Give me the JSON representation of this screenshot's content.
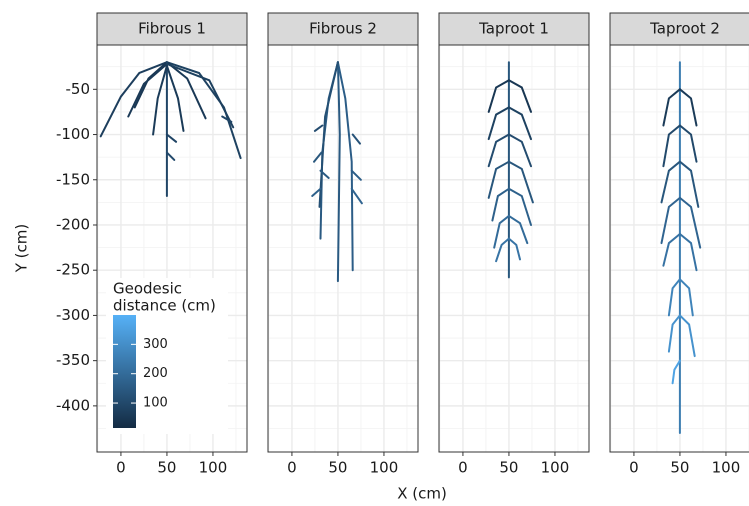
{
  "chart_data": {
    "type": "line",
    "xlabel": "X (cm)",
    "ylabel": "Y (cm)",
    "xlim": [
      -26,
      137
    ],
    "ylim": [
      -451,
      -1
    ],
    "xticks": [
      0,
      50,
      100
    ],
    "yticks": [
      -50,
      -100,
      -150,
      -200,
      -250,
      -300,
      -350,
      -400
    ],
    "xminor": [
      -25,
      25,
      75,
      125
    ],
    "yminor": [
      -25,
      -75,
      -125,
      -175,
      -225,
      -275,
      -325,
      -375,
      -425
    ],
    "grid": true,
    "colorbar": {
      "title_lines": [
        "Geodesic",
        "distance (cm)"
      ],
      "limits": [
        15,
        400
      ],
      "ticks": [
        100,
        200,
        300
      ],
      "colors": [
        "#132B43",
        "#56B1F7"
      ]
    },
    "facets": [
      {
        "title": "Fibrous 1",
        "roots": [
          {
            "x": [
              50,
              20,
              0,
              -22
            ],
            "y": [
              -20,
              -32,
              -58,
              -102
            ],
            "distance": 70
          },
          {
            "x": [
              50,
              85,
              112,
              130
            ],
            "y": [
              -20,
              -32,
              -70,
              -126
            ],
            "distance": 80
          },
          {
            "x": [
              50,
              30,
              15
            ],
            "y": [
              -20,
              -38,
              -70
            ],
            "distance": 50
          },
          {
            "x": [
              50,
              72,
              92
            ],
            "y": [
              -20,
              -38,
              -82
            ],
            "distance": 55
          },
          {
            "x": [
              50,
              50,
              50
            ],
            "y": [
              -20,
              -100,
              -168
            ],
            "distance": 90
          },
          {
            "x": [
              50,
              40,
              35
            ],
            "y": [
              -24,
              -60,
              -100
            ],
            "distance": 60
          },
          {
            "x": [
              50,
              62,
              68
            ],
            "y": [
              -24,
              -60,
              -96
            ],
            "distance": 60
          },
          {
            "x": [
              50,
              25,
              8
            ],
            "y": [
              -22,
              -44,
              -80
            ],
            "distance": 55
          },
          {
            "x": [
              50,
              96,
              122
            ],
            "y": [
              -22,
              -40,
              -92
            ],
            "distance": 75
          },
          {
            "x": [
              50,
              60
            ],
            "y": [
              -100,
              -108
            ],
            "distance": 85
          },
          {
            "x": [
              50,
              58
            ],
            "y": [
              -120,
              -128
            ],
            "distance": 100
          },
          {
            "x": [
              110,
              120
            ],
            "y": [
              -80,
              -86
            ],
            "distance": 90
          }
        ]
      },
      {
        "title": "Fibrous 2",
        "roots": [
          {
            "x": [
              50,
              40,
              33,
              31
            ],
            "y": [
              -20,
              -60,
              -120,
              -215
            ],
            "distance": 150
          },
          {
            "x": [
              50,
              58,
              65,
              66
            ],
            "y": [
              -20,
              -60,
              -130,
              -250
            ],
            "distance": 160
          },
          {
            "x": [
              50,
              52,
              50
            ],
            "y": [
              -20,
              -100,
              -262
            ],
            "distance": 150
          },
          {
            "x": [
              50,
              36,
              30
            ],
            "y": [
              -20,
              -80,
              -180
            ],
            "distance": 120
          },
          {
            "x": [
              33,
              25
            ],
            "y": [
              -90,
              -96
            ],
            "distance": 110
          },
          {
            "x": [
              32,
              24
            ],
            "y": [
              -120,
              -130
            ],
            "distance": 140
          },
          {
            "x": [
              31,
              22
            ],
            "y": [
              -160,
              -168
            ],
            "distance": 170
          },
          {
            "x": [
              65,
              75
            ],
            "y": [
              -140,
              -150
            ],
            "distance": 160
          },
          {
            "x": [
              65,
              76
            ],
            "y": [
              -160,
              -176
            ],
            "distance": 180
          },
          {
            "x": [
              66,
              74
            ],
            "y": [
              -100,
              -110
            ],
            "distance": 130
          },
          {
            "x": [
              31,
              40
            ],
            "y": [
              -140,
              -148
            ],
            "distance": 150
          }
        ]
      },
      {
        "title": "Taproot 1",
        "roots": [
          {
            "x": [
              50,
              50,
              50
            ],
            "y": [
              -20,
              -140,
              -258
            ],
            "distance": 140
          },
          {
            "x": [
              50,
              36,
              28
            ],
            "y": [
              -40,
              -48,
              -75
            ],
            "distance": 50
          },
          {
            "x": [
              50,
              64,
              74
            ],
            "y": [
              -40,
              -48,
              -75
            ],
            "distance": 50
          },
          {
            "x": [
              50,
              36,
              28
            ],
            "y": [
              -70,
              -78,
              -105
            ],
            "distance": 80
          },
          {
            "x": [
              50,
              64,
              74
            ],
            "y": [
              -70,
              -78,
              -105
            ],
            "distance": 80
          },
          {
            "x": [
              50,
              36,
              28
            ],
            "y": [
              -100,
              -108,
              -135
            ],
            "distance": 110
          },
          {
            "x": [
              50,
              64,
              74
            ],
            "y": [
              -100,
              -108,
              -135
            ],
            "distance": 110
          },
          {
            "x": [
              50,
              36,
              28
            ],
            "y": [
              -130,
              -138,
              -170
            ],
            "distance": 140
          },
          {
            "x": [
              50,
              64,
              76
            ],
            "y": [
              -130,
              -138,
              -175
            ],
            "distance": 140
          },
          {
            "x": [
              50,
              38,
              32
            ],
            "y": [
              -160,
              -168,
              -195
            ],
            "distance": 170
          },
          {
            "x": [
              50,
              64,
              74
            ],
            "y": [
              -160,
              -168,
              -200
            ],
            "distance": 170
          },
          {
            "x": [
              50,
              40,
              34
            ],
            "y": [
              -190,
              -198,
              -225
            ],
            "distance": 200
          },
          {
            "x": [
              50,
              62,
              70
            ],
            "y": [
              -190,
              -198,
              -220
            ],
            "distance": 200
          },
          {
            "x": [
              50,
              42,
              36
            ],
            "y": [
              -215,
              -222,
              -240
            ],
            "distance": 225
          },
          {
            "x": [
              50,
              58,
              62
            ],
            "y": [
              -215,
              -222,
              -238
            ],
            "distance": 225
          }
        ]
      },
      {
        "title": "Taproot 2",
        "roots": [
          {
            "x": [
              50,
              50,
              50
            ],
            "y": [
              -20,
              -200,
              -430
            ],
            "distance": 250
          },
          {
            "x": [
              50,
              38,
              32
            ],
            "y": [
              -50,
              -60,
              -90
            ],
            "distance": 60
          },
          {
            "x": [
              50,
              62,
              68
            ],
            "y": [
              -50,
              -60,
              -90
            ],
            "distance": 60
          },
          {
            "x": [
              50,
              38,
              32
            ],
            "y": [
              -90,
              -100,
              -135
            ],
            "distance": 100
          },
          {
            "x": [
              50,
              62,
              68
            ],
            "y": [
              -90,
              -100,
              -130
            ],
            "distance": 100
          },
          {
            "x": [
              50,
              38,
              30
            ],
            "y": [
              -130,
              -140,
              -175
            ],
            "distance": 140
          },
          {
            "x": [
              50,
              62,
              70
            ],
            "y": [
              -130,
              -140,
              -180
            ],
            "distance": 140
          },
          {
            "x": [
              50,
              38,
              30
            ],
            "y": [
              -170,
              -180,
              -220
            ],
            "distance": 180
          },
          {
            "x": [
              50,
              62,
              72
            ],
            "y": [
              -170,
              -180,
              -225
            ],
            "distance": 180
          },
          {
            "x": [
              50,
              38,
              32
            ],
            "y": [
              -210,
              -220,
              -245
            ],
            "distance": 220
          },
          {
            "x": [
              50,
              62,
              68
            ],
            "y": [
              -210,
              -220,
              -250
            ],
            "distance": 220
          },
          {
            "x": [
              50,
              42,
              38
            ],
            "y": [
              -260,
              -270,
              -300
            ],
            "distance": 270
          },
          {
            "x": [
              50,
              60,
              64
            ],
            "y": [
              -260,
              -270,
              -300
            ],
            "distance": 270
          },
          {
            "x": [
              50,
              42,
              38
            ],
            "y": [
              -300,
              -310,
              -340
            ],
            "distance": 310
          },
          {
            "x": [
              50,
              60,
              66
            ],
            "y": [
              -300,
              -310,
              -345
            ],
            "distance": 310
          },
          {
            "x": [
              50,
              44,
              42
            ],
            "y": [
              -350,
              -360,
              -375
            ],
            "distance": 360
          }
        ]
      }
    ]
  }
}
